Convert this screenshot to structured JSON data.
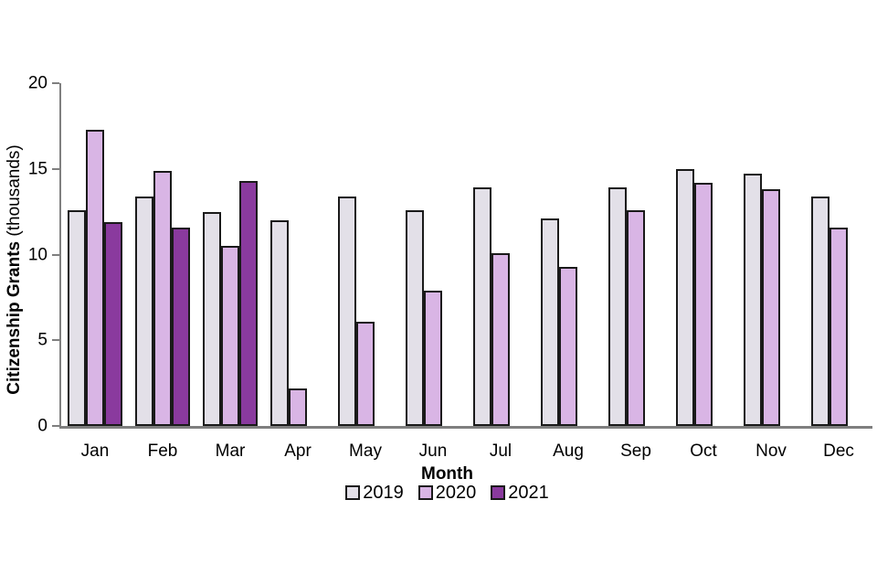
{
  "chart_data": {
    "type": "bar",
    "title": "",
    "xlabel": "Month",
    "ylabel": "Citizenship Grants",
    "ylabel_unit": " (thousands)",
    "ylim": [
      0,
      20
    ],
    "yticks": [
      0,
      5,
      10,
      15,
      20
    ],
    "grid": false,
    "legend_position": "bottom-center",
    "axis_color": "#7f7f7f",
    "bar_border_color": "#1a1a1a",
    "categories": [
      "Jan",
      "Feb",
      "Mar",
      "Apr",
      "May",
      "Jun",
      "Jul",
      "Aug",
      "Sep",
      "Oct",
      "Nov",
      "Dec"
    ],
    "series": [
      {
        "name": "2019",
        "color": "#e3e0e8",
        "values": [
          12.6,
          13.4,
          12.5,
          12.0,
          13.4,
          12.6,
          13.9,
          12.1,
          13.9,
          15.0,
          14.7,
          13.4
        ]
      },
      {
        "name": "2020",
        "color": "#d9b5e5",
        "values": [
          17.3,
          14.9,
          10.5,
          2.2,
          6.1,
          7.9,
          10.1,
          9.3,
          12.6,
          14.2,
          13.8,
          11.6
        ]
      },
      {
        "name": "2021",
        "color": "#8a3a9e",
        "values": [
          11.9,
          11.6,
          14.3,
          null,
          null,
          null,
          null,
          null,
          null,
          null,
          null,
          null
        ]
      }
    ],
    "legend": [
      "2019",
      "2020",
      "2021"
    ]
  }
}
